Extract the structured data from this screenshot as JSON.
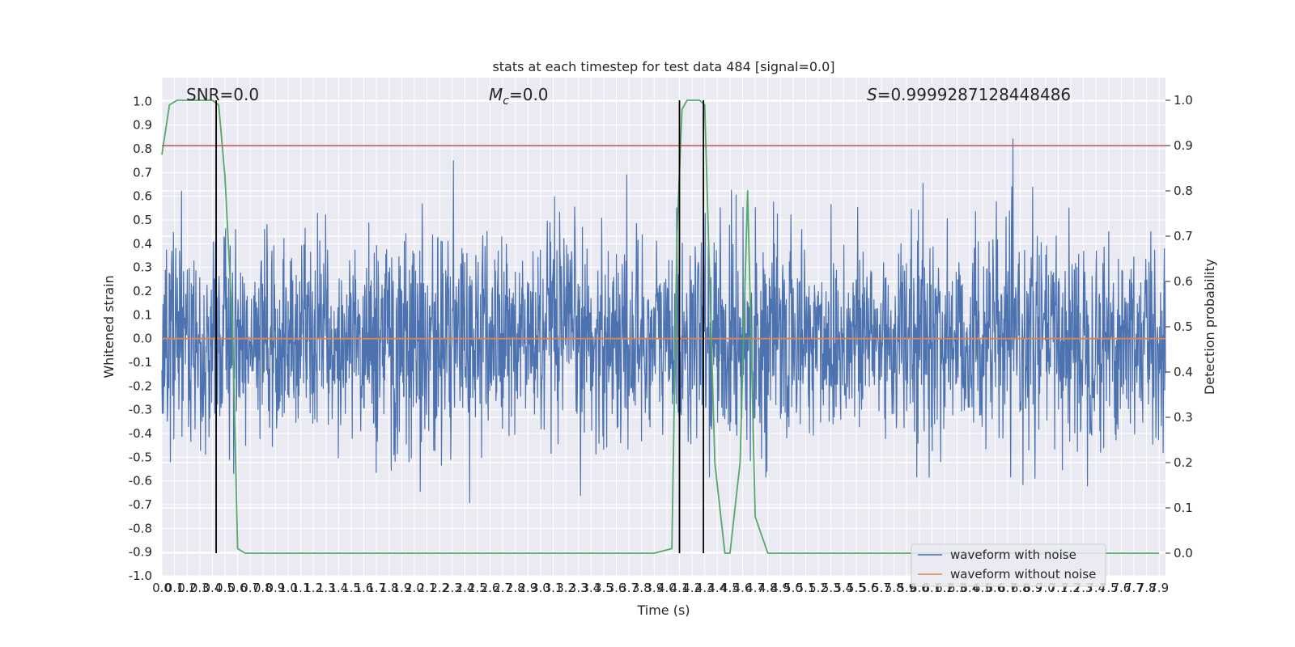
{
  "chart_data": {
    "type": "line",
    "title": "stats at each timestep for test data 484 [signal=0.0]",
    "xlabel": "Time (s)",
    "ylabel_left": "Whitened strain",
    "ylabel_right": "Detection probability",
    "xlim": [
      0.0,
      7.95
    ],
    "ylim_left": [
      -1.0,
      1.1
    ],
    "ylim_right": [
      -0.05,
      1.05
    ],
    "x_ticks": [
      "0.0",
      "0.1",
      "0.2",
      "0.3",
      "0.4",
      "0.5",
      "0.6",
      "0.7",
      "0.8",
      "0.9",
      "1.0",
      "1.1",
      "1.2",
      "1.3",
      "1.4",
      "1.5",
      "1.6",
      "1.7",
      "1.8",
      "1.9",
      "2.0",
      "2.1",
      "2.2",
      "2.3",
      "2.4",
      "2.5",
      "2.6",
      "2.7",
      "2.8",
      "2.9",
      "3.0",
      "3.1",
      "3.2",
      "3.3",
      "3.4",
      "3.5",
      "3.6",
      "3.7",
      "3.8",
      "3.9",
      "4.0",
      "4.1",
      "4.2",
      "4.3",
      "4.4",
      "4.5",
      "4.6",
      "4.7",
      "4.8",
      "4.9",
      "5.0",
      "5.1",
      "5.2",
      "5.3",
      "5.4",
      "5.5",
      "5.6",
      "5.7",
      "5.8",
      "5.9",
      "6.0",
      "6.1",
      "6.2",
      "6.3",
      "6.4",
      "6.5",
      "6.6",
      "6.7",
      "6.8",
      "6.9",
      "7.0",
      "7.1",
      "7.2",
      "7.3",
      "7.4",
      "7.5",
      "7.6",
      "7.7",
      "7.8",
      "7.9"
    ],
    "y_ticks_left": [
      "-1.0",
      "-0.9",
      "-0.8",
      "-0.7",
      "-0.6",
      "-0.5",
      "-0.4",
      "-0.3",
      "-0.2",
      "-0.1",
      "0.0",
      "0.1",
      "0.2",
      "0.3",
      "0.4",
      "0.5",
      "0.6",
      "0.7",
      "0.8",
      "0.9",
      "1.0"
    ],
    "y_ticks_right": [
      "0.0",
      "0.1",
      "0.2",
      "0.3",
      "0.4",
      "0.5",
      "0.6",
      "0.7",
      "0.8",
      "0.9",
      "1.0"
    ],
    "annotations": {
      "snr": "SNR=0.0",
      "mc_symbol": "M",
      "mc_sub": "c",
      "mc_value": "=0.0",
      "s_symbol": "S",
      "s_value": "=0.9999287128448486"
    },
    "threshold_line": {
      "axis": "right",
      "y": 0.9,
      "color": "#c44e52"
    },
    "vertical_lines": {
      "x": [
        0.43,
        4.1,
        4.29
      ],
      "color": "#000000"
    },
    "series": [
      {
        "name": "waveform with noise",
        "axis": "left",
        "color": "#4c72b0",
        "kind": "noise",
        "rms": 0.22,
        "max_abs": 1.0
      },
      {
        "name": "waveform without noise",
        "axis": "left",
        "color": "#dd8452",
        "x": [
          0.0,
          7.95
        ],
        "y": [
          0.0,
          0.0
        ]
      },
      {
        "name": "detection probability",
        "axis": "right",
        "color": "#55a868",
        "x": [
          0.0,
          0.06,
          0.12,
          0.2,
          0.3,
          0.4,
          0.45,
          0.5,
          0.56,
          0.6,
          0.66,
          1.0,
          2.0,
          3.0,
          3.9,
          4.04,
          4.08,
          4.12,
          4.16,
          4.22,
          4.26,
          4.3,
          4.38,
          4.46,
          4.5,
          4.58,
          4.64,
          4.7,
          4.8,
          5.0,
          6.0,
          7.0,
          7.9
        ],
        "y": [
          0.88,
          0.99,
          1.0,
          1.0,
          1.0,
          1.0,
          0.99,
          0.83,
          0.5,
          0.01,
          0.0,
          0.0,
          0.0,
          0.0,
          0.0,
          0.01,
          0.7,
          0.98,
          1.0,
          1.0,
          1.0,
          0.99,
          0.2,
          0.0,
          0.0,
          0.2,
          0.8,
          0.08,
          0.0,
          0.0,
          0.0,
          0.0,
          0.0
        ]
      }
    ],
    "legend": {
      "placement": "lower-right"
    }
  }
}
